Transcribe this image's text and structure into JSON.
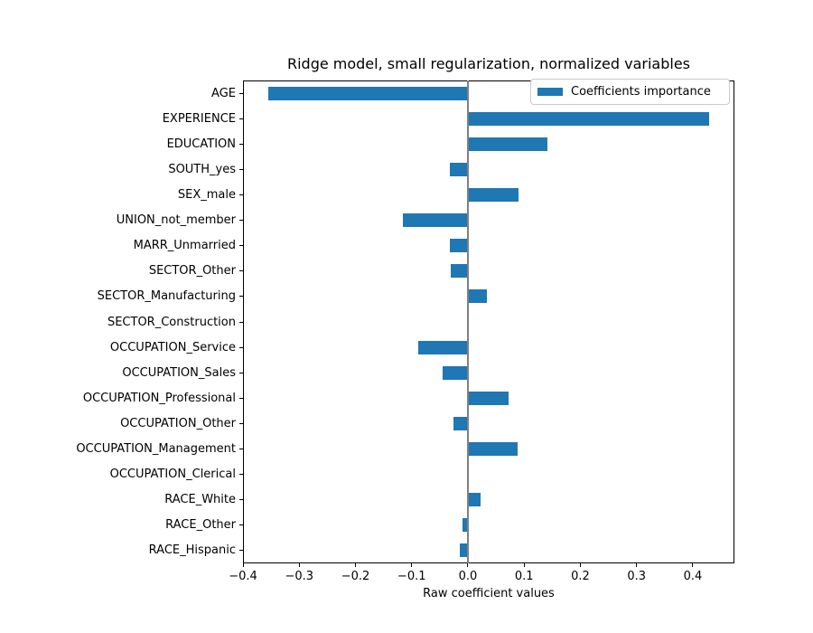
{
  "figure": {
    "title": "Ridge model, small regularization, normalized variables",
    "xlabel": "Raw coefficient values",
    "legend_label": "Coefficients importance",
    "colors": {
      "bar": "#1f77b4",
      "zero_line": "#808080",
      "spine": "#000000",
      "legend_border": "#cccccc",
      "background": "#ffffff"
    }
  },
  "chart_data": {
    "type": "bar",
    "orientation": "horizontal",
    "title": "Ridge model, small regularization, normalized variables",
    "xlabel": "Raw coefficient values",
    "ylabel": "",
    "legend": [
      "Coefficients importance"
    ],
    "legend_position": "upper right",
    "grid": false,
    "zero_line": true,
    "xlim": [
      -0.4,
      0.474
    ],
    "xticks": [
      -0.4,
      -0.3,
      -0.2,
      -0.1,
      0.0,
      0.1,
      0.2,
      0.3,
      0.4
    ],
    "xtick_labels": [
      "−0.4",
      "−0.3",
      "−0.2",
      "−0.1",
      "0.0",
      "0.1",
      "0.2",
      "0.3",
      "0.4"
    ],
    "categories": [
      "AGE",
      "EXPERIENCE",
      "EDUCATION",
      "SOUTH_yes",
      "SEX_male",
      "UNION_not_member",
      "MARR_Unmarried",
      "SECTOR_Other",
      "SECTOR_Manufacturing",
      "SECTOR_Construction",
      "OCCUPATION_Service",
      "OCCUPATION_Sales",
      "OCCUPATION_Professional",
      "OCCUPATION_Other",
      "OCCUPATION_Management",
      "OCCUPATION_Clerical",
      "RACE_White",
      "RACE_Other",
      "RACE_Hispanic"
    ],
    "values": [
      -0.355,
      0.429,
      0.142,
      -0.032,
      0.09,
      -0.115,
      -0.032,
      -0.03,
      0.033,
      0.0,
      -0.089,
      -0.045,
      0.072,
      -0.025,
      0.089,
      0.0,
      0.023,
      -0.009,
      -0.014
    ]
  }
}
